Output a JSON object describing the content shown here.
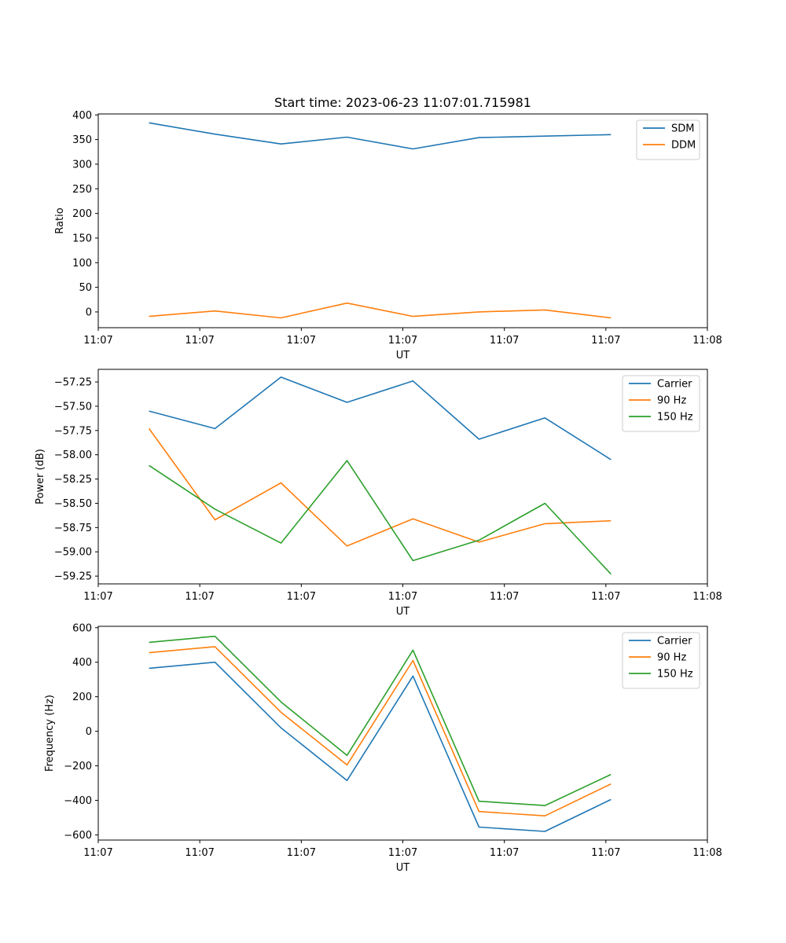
{
  "chart_data": [
    {
      "type": "line",
      "title": "Start time: 2023-06-23 11:07:01.715981",
      "xlabel": "UT",
      "ylabel": "Ratio",
      "x_ticks": [
        "11:07",
        "11:07",
        "11:07",
        "11:07",
        "11:07",
        "11:07",
        "11:08"
      ],
      "x_range": [
        0,
        6.0
      ],
      "x": [
        0.5,
        1.15,
        1.8,
        2.45,
        3.1,
        3.75,
        4.4,
        5.05
      ],
      "ylim": [
        -32,
        402
      ],
      "y_ticks": [
        0,
        50,
        100,
        150,
        200,
        250,
        300,
        350,
        400
      ],
      "y_tick_labels": [
        "0",
        "50",
        "100",
        "150",
        "200",
        "250",
        "300",
        "350",
        "400"
      ],
      "legend_position": "top-right",
      "series": [
        {
          "name": "SDM",
          "color": "#1f77b4",
          "values": [
            384,
            361,
            341,
            355,
            331,
            354,
            357,
            360
          ]
        },
        {
          "name": "DDM",
          "color": "#ff7f0e",
          "values": [
            -9,
            2,
            -12,
            18,
            -9,
            0,
            4,
            -12
          ]
        }
      ]
    },
    {
      "type": "line",
      "title": "",
      "xlabel": "UT",
      "ylabel": "Power (dB)",
      "x_ticks": [
        "11:07",
        "11:07",
        "11:07",
        "11:07",
        "11:07",
        "11:07",
        "11:08"
      ],
      "x_range": [
        0,
        6.0
      ],
      "x": [
        0.5,
        1.15,
        1.8,
        2.45,
        3.1,
        3.75,
        4.4,
        5.05
      ],
      "ylim": [
        -59.33,
        -57.12
      ],
      "y_ticks": [
        -59.25,
        -59.0,
        -58.75,
        -58.5,
        -58.25,
        -58.0,
        -57.75,
        -57.5,
        -57.25
      ],
      "y_tick_labels": [
        "−59.25",
        "−59.00",
        "−58.75",
        "−58.50",
        "−58.25",
        "−58.00",
        "−57.75",
        "−57.50",
        "−57.25"
      ],
      "legend_position": "top-right",
      "series": [
        {
          "name": "Carrier",
          "color": "#1f77b4",
          "values": [
            -57.55,
            -57.73,
            -57.2,
            -57.46,
            -57.24,
            -57.84,
            -57.62,
            -58.05
          ]
        },
        {
          "name": "90 Hz",
          "color": "#ff7f0e",
          "values": [
            -57.73,
            -58.67,
            -58.29,
            -58.94,
            -58.66,
            -58.9,
            -58.71,
            -58.68
          ]
        },
        {
          "name": "150 Hz",
          "color": "#2ca02c",
          "values": [
            -58.11,
            -58.56,
            -58.91,
            -58.06,
            -59.09,
            -58.88,
            -58.5,
            -59.23
          ]
        }
      ]
    },
    {
      "type": "line",
      "title": "",
      "xlabel": "UT",
      "ylabel": "Frequency (Hz)",
      "x_ticks": [
        "11:07",
        "11:07",
        "11:07",
        "11:07",
        "11:07",
        "11:07",
        "11:08"
      ],
      "x_range": [
        0,
        6.0
      ],
      "x": [
        0.5,
        1.15,
        1.8,
        2.45,
        3.1,
        3.75,
        4.4,
        5.05
      ],
      "ylim": [
        -630,
        608
      ],
      "y_ticks": [
        -600,
        -400,
        -200,
        0,
        200,
        400,
        600
      ],
      "y_tick_labels": [
        "−600",
        "−400",
        "−200",
        "0",
        "200",
        "400",
        "600"
      ],
      "legend_position": "top-right",
      "series": [
        {
          "name": "Carrier",
          "color": "#1f77b4",
          "values": [
            365,
            400,
            20,
            -285,
            320,
            -555,
            -580,
            -395
          ]
        },
        {
          "name": "90 Hz",
          "color": "#ff7f0e",
          "values": [
            455,
            490,
            110,
            -195,
            410,
            -465,
            -490,
            -305
          ]
        },
        {
          "name": "150 Hz",
          "color": "#2ca02c",
          "values": [
            515,
            550,
            170,
            -140,
            470,
            -405,
            -430,
            -250
          ]
        }
      ]
    }
  ]
}
